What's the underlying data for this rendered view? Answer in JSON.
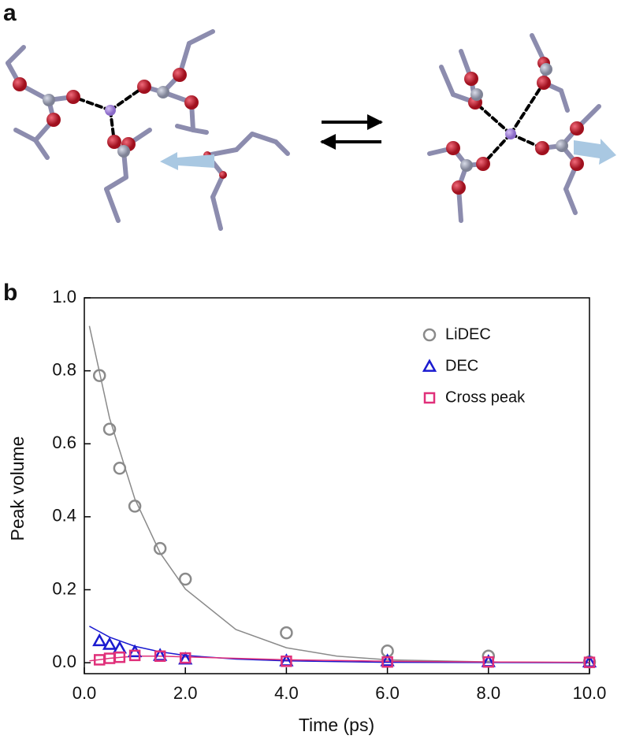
{
  "panel_labels": [
    "a",
    "b"
  ],
  "chart_data": {
    "type": "scatter",
    "xlabel": "Time (ps)",
    "ylabel": "Peak volume",
    "x": [
      0.3,
      0.5,
      0.7,
      1.0,
      1.5,
      2.0,
      4.0,
      6.0,
      8.0,
      10.0
    ],
    "xlim": [
      0,
      10
    ],
    "ylim": [
      -0.03,
      1.0
    ],
    "xticks": [
      {
        "value": 0,
        "label": "0.0"
      },
      {
        "value": 2,
        "label": "2.0"
      },
      {
        "value": 4,
        "label": "4.0"
      },
      {
        "value": 6,
        "label": "6.0"
      },
      {
        "value": 8,
        "label": "8.0"
      },
      {
        "value": 10,
        "label": "10.0"
      }
    ],
    "yticks": [
      {
        "value": 0,
        "label": "0.0"
      },
      0.2,
      0.4,
      0.6,
      0.8,
      {
        "value": 1,
        "label": "1.0"
      }
    ],
    "legend": "upper right",
    "grid": false,
    "series": [
      {
        "name": "LiDEC",
        "color": "#8a8a8a",
        "marker": "circle",
        "values": [
          0.787,
          0.64,
          0.533,
          0.429,
          0.313,
          0.229,
          0.082,
          0.032,
          0.018,
          0.002
        ],
        "fit": {
          "x": [
            0.1,
            0.5,
            1.0,
            1.5,
            2.0,
            3.0,
            4.0,
            5.0,
            6.0,
            8.0,
            10.0
          ],
          "values": [
            0.923,
            0.67,
            0.449,
            0.301,
            0.202,
            0.091,
            0.041,
            0.018,
            0.008,
            0.002,
            0.0003
          ]
        }
      },
      {
        "name": "DEC",
        "color": "#1a1ad0",
        "marker": "triangle",
        "values": [
          0.06,
          0.05,
          0.04,
          0.03,
          0.02,
          0.01,
          0.005,
          0.005,
          0.003,
          0.002
        ],
        "fit": {
          "x": [
            0.1,
            0.5,
            1.0,
            1.5,
            2.0,
            3.0,
            4.0,
            6.0,
            10.0
          ],
          "values": [
            0.1,
            0.07,
            0.045,
            0.03,
            0.02,
            0.01,
            0.005,
            0.001,
            0
          ]
        }
      },
      {
        "name": "Cross peak",
        "color": "#e0307a",
        "marker": "square",
        "values": [
          0.008,
          0.012,
          0.015,
          0.02,
          0.018,
          0.013,
          0.004,
          0.002,
          0.002,
          0.001
        ],
        "fit": {
          "x": [
            0.1,
            0.5,
            1.0,
            1.5,
            2.0,
            4.0,
            6.0,
            8.0,
            10.0
          ],
          "values": [
            0.005,
            0.012,
            0.018,
            0.018,
            0.016,
            0.008,
            0.004,
            0.002,
            0.001
          ]
        }
      }
    ]
  }
}
